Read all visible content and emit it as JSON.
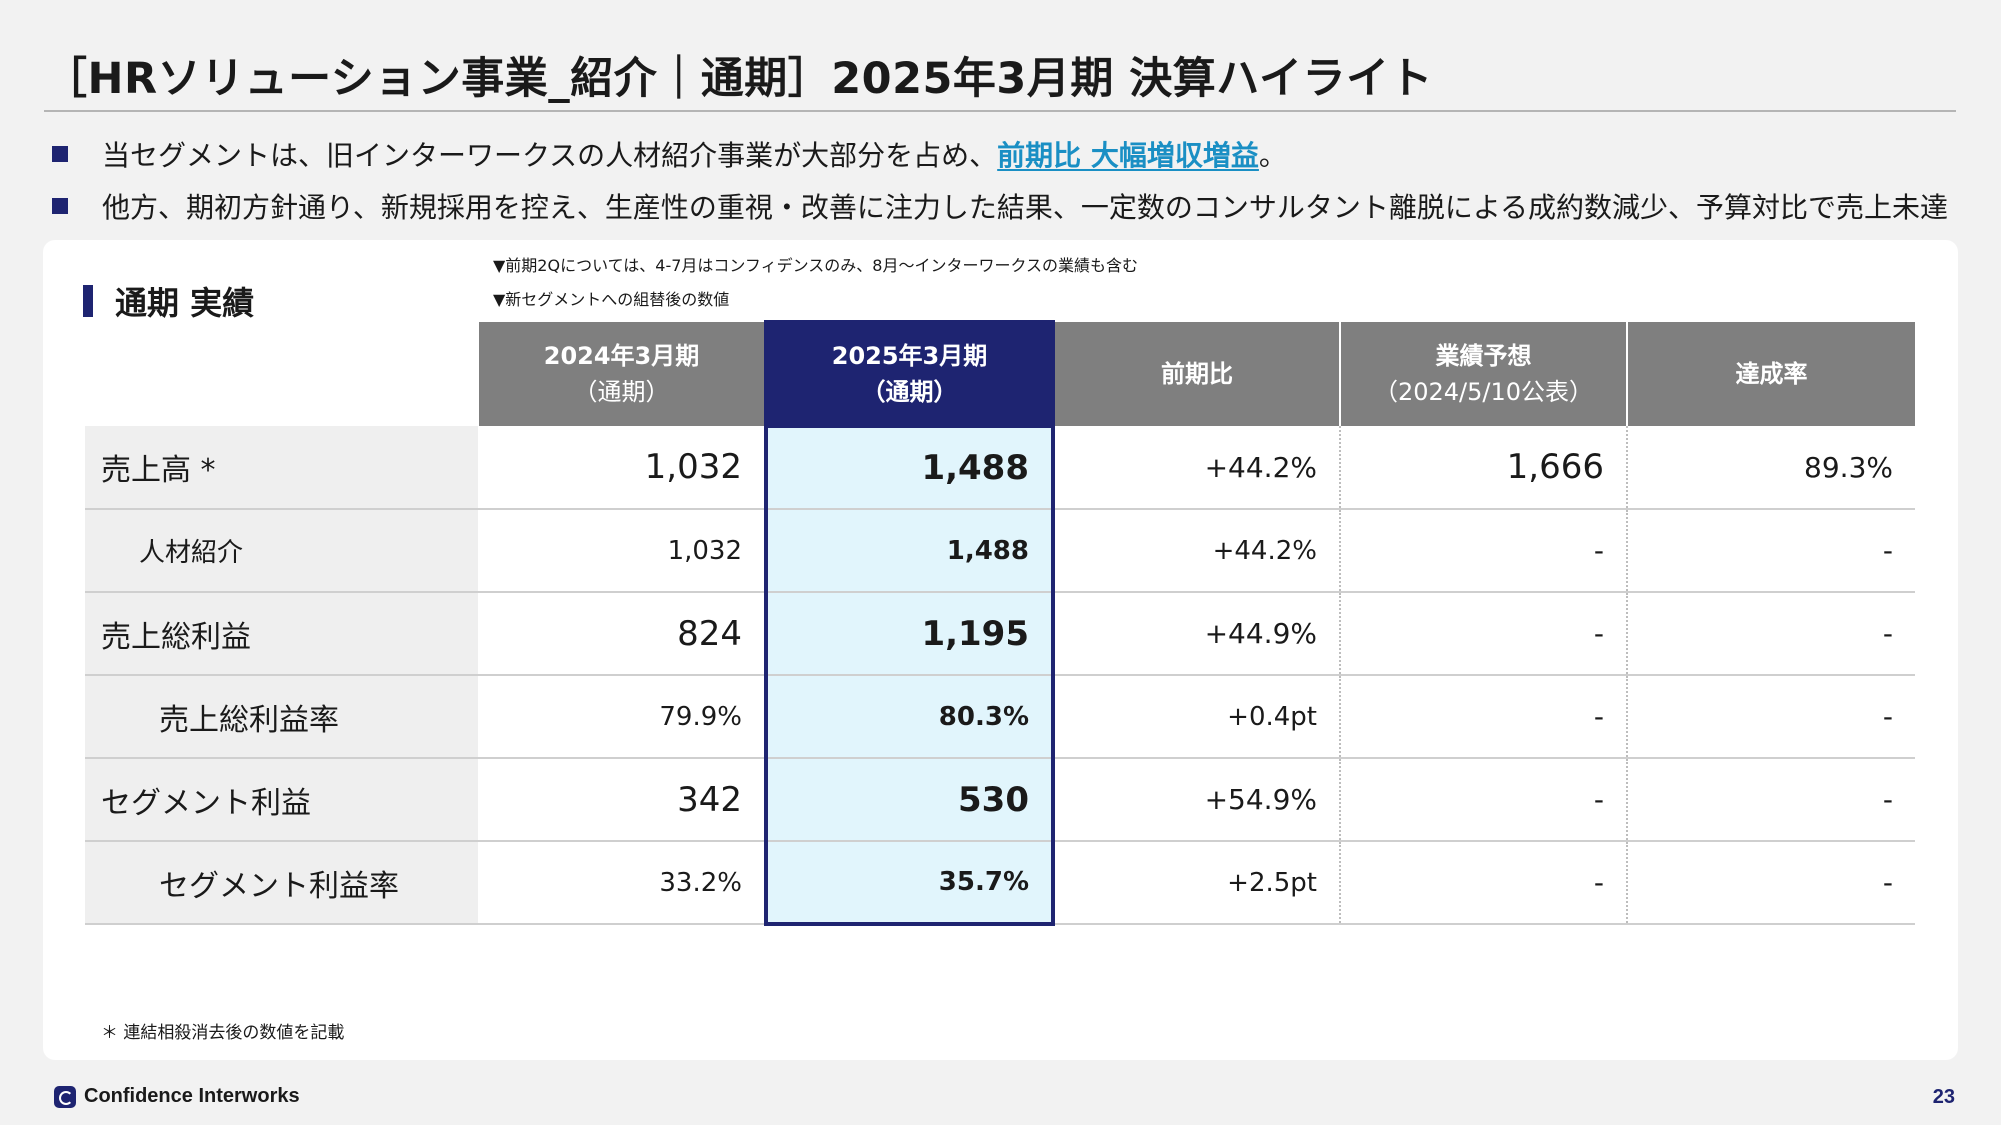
{
  "header": {
    "title": "［HRソリューション事業_紹介｜通期］2025年3月期 決算ハイライト"
  },
  "bullets": [
    {
      "text_before": "当セグメントは、旧インターワークスの人材紹介事業が大部分を占め、",
      "highlight": "前期比 大幅増収増益",
      "text_after": "。"
    },
    {
      "text_before": "他方、期初方針通り、新規採用を控え、生産性の重視・改善に注力した結果、一定数のコンサルタント離脱による成約数減少、予算対比で売上未達",
      "highlight": "",
      "text_after": ""
    }
  ],
  "section": {
    "title": "通期 実績",
    "note1": "▼前期2Qについては、4-7月はコンフィデンスのみ、8月～インターワークスの業績も含む",
    "note2": "▼新セグメントへの組替後の数値"
  },
  "table": {
    "headers": [
      {
        "line1": "2024年3月期",
        "line2": "（通期）"
      },
      {
        "line1": "2025年3月期",
        "line2": "（通期）"
      },
      {
        "line1": "前期比",
        "line2": ""
      },
      {
        "line1": "業績予想",
        "line2": "（2024/5/10公表）"
      },
      {
        "line1": "達成率",
        "line2": ""
      }
    ],
    "rows": [
      {
        "label": "売上高 *",
        "prev": "1,032",
        "cur": "1,488",
        "yoy": "+44.2%",
        "forecast": "1,666",
        "achievement": "89.3%"
      },
      {
        "label": "人材紹介",
        "prev": "1,032",
        "cur": "1,488",
        "yoy": "+44.2%",
        "forecast": "-",
        "achievement": "-"
      },
      {
        "label": "売上総利益",
        "prev": "824",
        "cur": "1,195",
        "yoy": "+44.9%",
        "forecast": "-",
        "achievement": "-"
      },
      {
        "label": "売上総利益率",
        "prev": "79.9%",
        "cur": "80.3%",
        "yoy": "+0.4pt",
        "forecast": "-",
        "achievement": "-"
      },
      {
        "label": "セグメント利益",
        "prev": "342",
        "cur": "530",
        "yoy": "+54.9%",
        "forecast": "-",
        "achievement": "-"
      },
      {
        "label": "セグメント利益率",
        "prev": "33.2%",
        "cur": "35.7%",
        "yoy": "+2.5pt",
        "forecast": "-",
        "achievement": "-"
      }
    ]
  },
  "footnote": "＊ 連結相殺消去後の数値を記載",
  "footer": {
    "company": "Confidence Interworks",
    "page_number": "23"
  },
  "colors": {
    "navy": "#1e2471",
    "header_gray": "#7f7f7f",
    "current_fill": "#e1f5fc",
    "highlight": "#1a8fc4"
  }
}
